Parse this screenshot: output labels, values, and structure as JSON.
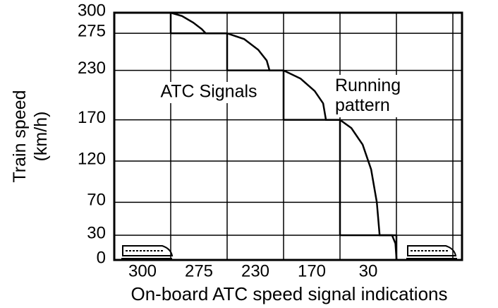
{
  "chart_data": {
    "type": "step-and-curve",
    "x_label": "On-board ATC speed signal indications",
    "y_label": "Train speed (km/h)",
    "categories": [
      "300",
      "275",
      "230",
      "170",
      "30"
    ],
    "ylim": [
      0,
      300
    ],
    "yticks": [
      0,
      30,
      70,
      120,
      170,
      230,
      275,
      300
    ],
    "grid": true,
    "xlim": [
      0,
      6.16
    ],
    "series": [
      {
        "name": "ATC Signals",
        "color": "#000000",
        "values": [
          300,
          275,
          230,
          170,
          30
        ]
      },
      {
        "name": "Running pattern",
        "color": "#000000",
        "x": [
          0,
          1,
          1.2,
          1.4,
          1.55,
          1.62,
          2,
          2.3,
          2.55,
          2.7,
          2.75,
          3,
          3.3,
          3.55,
          3.7,
          3.75,
          4,
          4.2,
          4.4,
          4.55,
          4.65,
          4.7,
          4.92,
          4.98,
          5.0
        ],
        "values": [
          300,
          300,
          296,
          288,
          280,
          275,
          275,
          268,
          255,
          242,
          230,
          230,
          220,
          205,
          190,
          170,
          170,
          160,
          140,
          110,
          70,
          30,
          30,
          20,
          0
        ]
      }
    ]
  }
}
